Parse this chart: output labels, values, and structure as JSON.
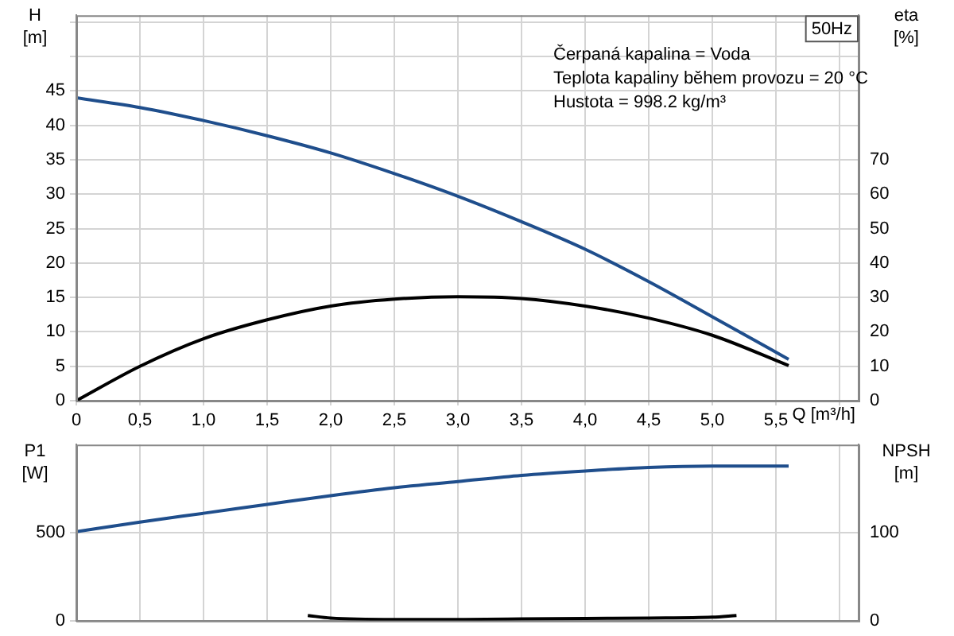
{
  "chart_data": [
    {
      "type": "line",
      "title": "50Hz",
      "xlabel": "Q [m³/h]",
      "ylabel": "H [m]",
      "y2label": "eta [%]",
      "annotations": [
        "Čerpaná kapalina = Voda",
        "Teplota kapaliny během provozu = 20 °C",
        "Hustota = 998.2 kg/m³"
      ],
      "xlim": [
        0,
        6.15
      ],
      "xticks": [
        0,
        {
          "value": 0.5,
          "label": "0,5"
        },
        {
          "value": 1,
          "label": "1,0"
        },
        {
          "value": 1.5,
          "label": "1,5"
        },
        {
          "value": 2,
          "label": "2,0"
        },
        {
          "value": 2.5,
          "label": "2,5"
        },
        {
          "value": 3,
          "label": "3,0"
        },
        {
          "value": 3.5,
          "label": "3,5"
        },
        {
          "value": 4,
          "label": "4,0"
        },
        {
          "value": 4.5,
          "label": "4,5"
        },
        {
          "value": 5,
          "label": "5,0"
        },
        {
          "value": 5.5,
          "label": "5,5"
        },
        {
          "value": 6,
          "label": null
        }
      ],
      "ylim": [
        0,
        56
      ],
      "yticks": [
        0,
        5,
        10,
        15,
        20,
        25,
        30,
        35,
        40,
        45,
        {
          "value": 50,
          "label": null
        },
        {
          "value": 55,
          "label": null
        }
      ],
      "y2lim": [
        0,
        112
      ],
      "y2ticks": [
        0,
        10,
        20,
        30,
        40,
        50,
        60,
        70
      ],
      "grid": true,
      "series": [
        {
          "color": "#1f4e8c",
          "x": [
            0,
            0.5,
            1,
            1.5,
            2,
            2.5,
            3,
            3.5,
            4,
            4.5,
            5,
            5.6
          ],
          "values": [
            44,
            42.6,
            40.7,
            38.5,
            36,
            33,
            29.7,
            26,
            22,
            17.3,
            12.2,
            6
          ]
        },
        {
          "color": "#000000",
          "axis": "y2",
          "x": [
            0,
            0.5,
            1,
            1.5,
            2,
            2.5,
            3,
            3.5,
            4,
            4.5,
            5,
            5.6
          ],
          "values": [
            0,
            10,
            18,
            23.5,
            27.5,
            29.5,
            30.2,
            29.7,
            27.5,
            24,
            19,
            10.2
          ]
        }
      ]
    },
    {
      "type": "line",
      "ylabel": "P1 [W]",
      "y2label": "NPSH [m]",
      "xlim": [
        0,
        6.15
      ],
      "xticks": [
        0,
        0.5,
        1,
        1.5,
        2,
        2.5,
        3,
        3.5,
        4,
        4.5,
        5,
        5.5,
        6
      ],
      "ylim": [
        0,
        1000
      ],
      "yticks": [
        0,
        500
      ],
      "y2lim": [
        0,
        200
      ],
      "y2ticks": [
        0,
        100
      ],
      "grid": true,
      "tick_labels": "y",
      "series": [
        {
          "color": "#1f4e8c",
          "x": [
            0,
            0.5,
            1,
            1.5,
            2,
            2.5,
            3,
            3.5,
            4,
            4.5,
            5,
            5.6
          ],
          "values": [
            505,
            560,
            610,
            660,
            710,
            755,
            790,
            825,
            850,
            870,
            878,
            878
          ]
        },
        {
          "color": "#000000",
          "axis": "y2",
          "x": [
            1.82,
            2,
            2.5,
            3,
            3.5,
            4,
            4.5,
            5,
            5.19
          ],
          "values": [
            6,
            3,
            1.5,
            1.5,
            2,
            2.5,
            3,
            4,
            6
          ]
        }
      ]
    }
  ]
}
